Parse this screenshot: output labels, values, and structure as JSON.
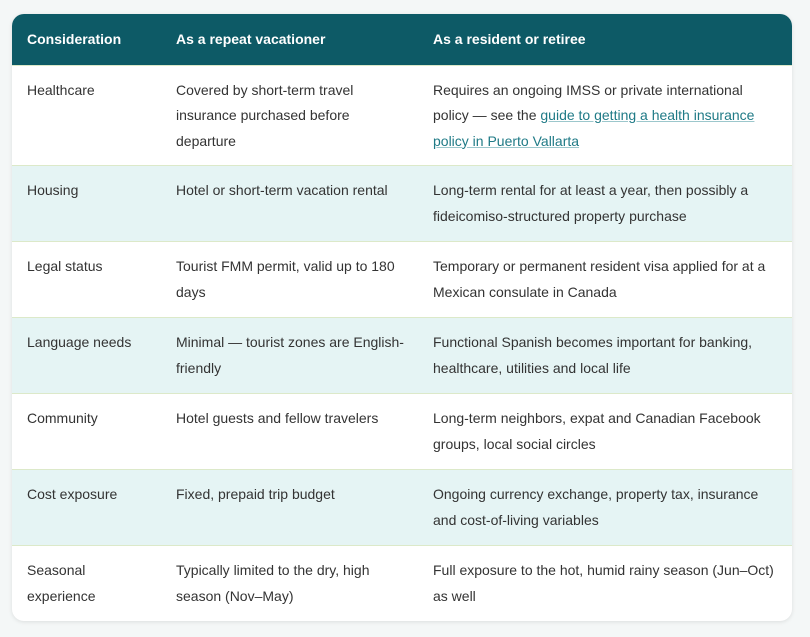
{
  "table": {
    "headers": [
      "Consideration",
      "As a repeat vacationer",
      "As a resident or retiree"
    ],
    "rows": [
      {
        "consideration": "Healthcare",
        "vacationer": "Covered by short-term travel insurance purchased before departure",
        "resident_before": "Requires an ongoing IMSS or private international policy — see the ",
        "resident_link": "guide to getting a health insurance policy in Puerto Vallarta",
        "resident_after": ""
      },
      {
        "consideration": "Housing",
        "vacationer": "Hotel or short-term vacation rental",
        "resident": "Long-term rental for at least a year, then possibly a fideicomiso-structured property purchase"
      },
      {
        "consideration": "Legal status",
        "vacationer": "Tourist FMM permit, valid up to 180 days",
        "resident": "Temporary or permanent resident visa applied for at a Mexican consulate in Canada"
      },
      {
        "consideration": "Language needs",
        "vacationer": "Minimal — tourist zones are English-friendly",
        "resident": "Functional Spanish becomes important for banking, healthcare, utilities and local life"
      },
      {
        "consideration": "Community",
        "vacationer": "Hotel guests and fellow travelers",
        "resident": "Long-term neighbors, expat and Canadian Facebook groups, local social circles"
      },
      {
        "consideration": "Cost exposure",
        "vacationer": "Fixed, prepaid trip budget",
        "resident": "Ongoing currency exchange, property tax, insurance and cost-of-living variables"
      },
      {
        "consideration": "Seasonal experience",
        "vacationer": "Typically limited to the dry, high season (Nov–May)",
        "resident": "Full exposure to the hot, humid rainy season (Jun–Oct) as well"
      }
    ]
  },
  "colors": {
    "header_bg": "#0d5a66",
    "alt_row_bg": "#e5f4f4",
    "link": "#1f7a86"
  }
}
